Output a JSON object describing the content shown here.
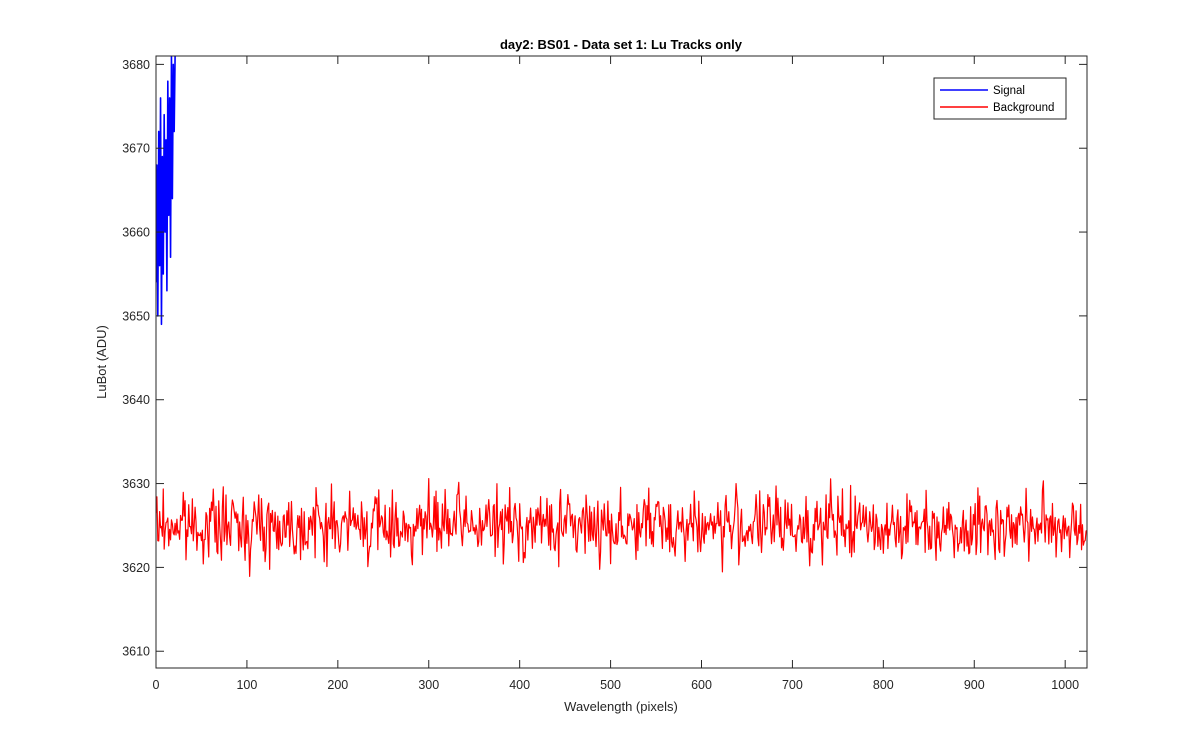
{
  "chart_data": {
    "type": "line",
    "title": "day2: BS01 - Data set 1: Lu Tracks only",
    "xlabel": "Wavelength (pixels)",
    "ylabel": "LuBot (ADU)",
    "xlim": [
      0,
      1024
    ],
    "ylim": [
      3608,
      3681
    ],
    "xticks": [
      0,
      100,
      200,
      300,
      400,
      500,
      600,
      700,
      800,
      900,
      1000
    ],
    "yticks": [
      3610,
      3620,
      3630,
      3640,
      3650,
      3660,
      3670,
      3680
    ],
    "grid": false,
    "legend_position": "top-right",
    "series": [
      {
        "name": "Signal",
        "color": "#0000ff",
        "x": [
          0,
          1,
          2,
          3,
          4,
          5,
          6,
          7,
          8,
          9,
          10,
          11,
          12,
          13,
          14,
          15,
          16,
          17,
          18,
          19,
          20,
          21
        ],
        "y": [
          3654,
          3668,
          3650,
          3672,
          3656,
          3676,
          3649,
          3669,
          3655,
          3674,
          3660,
          3671,
          3653,
          3678,
          3662,
          3676,
          3657,
          3681,
          3664,
          3680,
          3672,
          3681
        ]
      },
      {
        "name": "Background",
        "color": "#ff0000",
        "x_range": [
          0,
          1024
        ],
        "mean": 3625,
        "min": 3618,
        "max": 3631
      }
    ]
  }
}
